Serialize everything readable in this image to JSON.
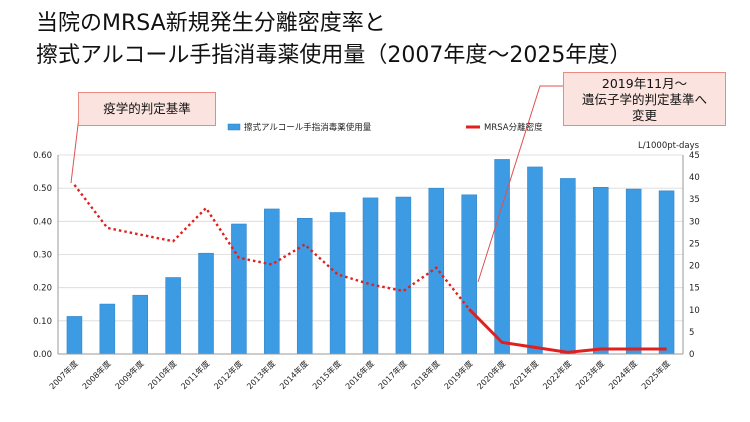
{
  "title": {
    "line1": "当院のMRSA新規発生分離密度率と",
    "line2": "擦式アルコール手指消毒薬使用量（2007年度～2025年度）"
  },
  "callouts": {
    "left": "疫学的判定基準",
    "right_line1": "2019年11月～",
    "right_line2": "遺伝子学的判定基準へ",
    "right_line3": "変更"
  },
  "colors": {
    "bar": "#3d9be3",
    "line": "#e0201e",
    "callout_fill": "#fbe3df",
    "callout_border": "#e98b80"
  },
  "chart_data": {
    "type": "bar",
    "categories": [
      "2007年度",
      "2008年度",
      "2009年度",
      "2010年度",
      "2011年度",
      "2012年度",
      "2013年度",
      "2014年度",
      "2015年度",
      "2016年度",
      "2017年度",
      "2018年度",
      "2019年度",
      "2020年度",
      "2021年度",
      "2022年度",
      "2023年度",
      "2024年度",
      "2025年度"
    ],
    "series": [
      {
        "name": "擦式アルコール手指消毒薬使用量",
        "kind": "bar",
        "axis": "right",
        "values": [
          8.5,
          11.3,
          13.3,
          17.3,
          22.8,
          29.4,
          32.8,
          30.7,
          32.0,
          35.3,
          35.5,
          37.5,
          36.0,
          44.0,
          42.3,
          39.7,
          37.7,
          37.3,
          36.9
        ]
      },
      {
        "name": "MRSA分離密度",
        "kind": "line",
        "axis": "left",
        "values": [
          0.51,
          0.38,
          0.36,
          0.34,
          0.44,
          0.29,
          0.27,
          0.33,
          0.24,
          0.21,
          0.19,
          0.26,
          0.135,
          0.035,
          0.02,
          0.005,
          0.015,
          0.015,
          0.015
        ],
        "dotted_through": "2019年度",
        "solid_from": "2019年度"
      }
    ],
    "y_left": {
      "ylim": [
        0,
        0.6
      ],
      "ticks": [
        "0.00",
        "0.10",
        "0.20",
        "0.30",
        "0.40",
        "0.50",
        "0.60"
      ]
    },
    "y_right": {
      "ylim": [
        0,
        45
      ],
      "ticks": [
        "0",
        "5",
        "10",
        "15",
        "20",
        "25",
        "30",
        "35",
        "40",
        "45"
      ],
      "unit_label": "L/1000pt-days"
    },
    "grid": true,
    "legend_position": "top"
  }
}
